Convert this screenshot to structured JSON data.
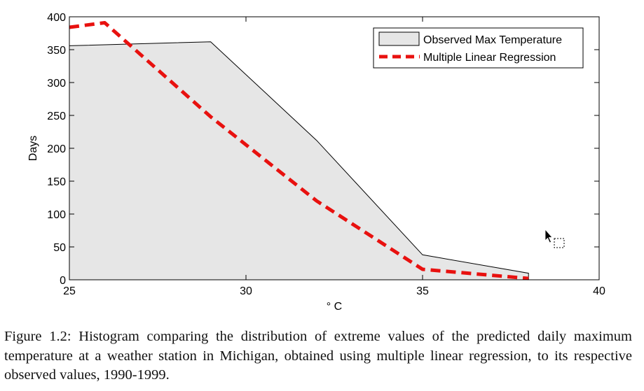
{
  "chart_data": {
    "type": "area",
    "xlabel": "° C",
    "ylabel": "Days",
    "xlim": [
      25,
      40
    ],
    "ylim": [
      0,
      400
    ],
    "xticks": [
      25,
      30,
      35,
      40
    ],
    "yticks": [
      0,
      50,
      100,
      150,
      200,
      250,
      300,
      350,
      400
    ],
    "grid": false,
    "legend_position": "top-right",
    "series": [
      {
        "name": "Observed Max Temperature",
        "style": "filled-area",
        "fill_color": "#e6e6e6",
        "line_color": "#000000",
        "x": [
          25,
          29,
          32,
          35,
          38
        ],
        "y": [
          356,
          362,
          212,
          38,
          10
        ]
      },
      {
        "name": "Multiple Linear Regression",
        "style": "dashed-line",
        "color": "#e8110f",
        "x": [
          25,
          26,
          29,
          32,
          35,
          38
        ],
        "y": [
          384,
          391,
          248,
          120,
          16,
          2
        ]
      }
    ]
  },
  "caption": "Figure 1.2: Histogram comparing the distribution of extreme values of the predicted daily maximum temperature at a weather station in Michigan, obtained using multiple linear regression, to its respective observed values, 1990-1999."
}
